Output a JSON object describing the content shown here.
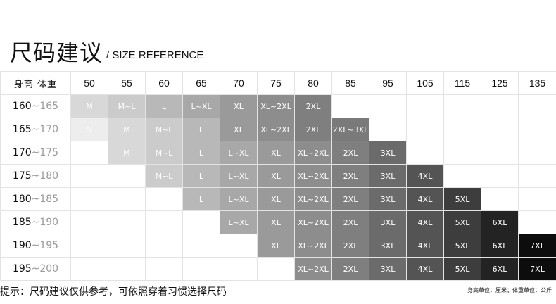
{
  "header": {
    "title_cn": "尺码建议",
    "title_en": "/ SIZE REFERENCE"
  },
  "table": {
    "corner_label": "身高  体重",
    "weights": [
      "50",
      "55",
      "60",
      "65",
      "70",
      "75",
      "80",
      "85",
      "95",
      "105",
      "115",
      "125",
      "135"
    ],
    "rows": [
      {
        "height_from": "160",
        "height_to": "~165",
        "cells": [
          "M",
          "M~L",
          "L",
          "L~XL",
          "XL",
          "XL~2XL",
          "2XL",
          "",
          "",
          "",
          "",
          "",
          ""
        ]
      },
      {
        "height_from": "165",
        "height_to": "~170",
        "cells": [
          "S",
          "M",
          "M~L",
          "L",
          "XL",
          "XL~2XL",
          "2XL",
          "2XL~3XL",
          "",
          "",
          "",
          "",
          ""
        ]
      },
      {
        "height_from": "170",
        "height_to": "~175",
        "cells": [
          "",
          "M",
          "M~L",
          "L",
          "L~XL",
          "XL",
          "XL~2XL",
          "2XL",
          "3XL",
          "",
          "",
          "",
          ""
        ]
      },
      {
        "height_from": "175",
        "height_to": "~180",
        "cells": [
          "",
          "",
          "M~L",
          "L",
          "L~XL",
          "XL",
          "XL~2XL",
          "2XL",
          "3XL",
          "4XL",
          "",
          "",
          ""
        ]
      },
      {
        "height_from": "180",
        "height_to": "~185",
        "cells": [
          "",
          "",
          "",
          "L",
          "L~XL",
          "XL",
          "XL~2XL",
          "2XL",
          "3XL",
          "4XL",
          "5XL",
          "",
          ""
        ]
      },
      {
        "height_from": "185",
        "height_to": "~190",
        "cells": [
          "",
          "",
          "",
          "",
          "L~XL",
          "XL",
          "XL~2XL",
          "2XL",
          "3XL",
          "4XL",
          "5XL",
          "6XL",
          ""
        ]
      },
      {
        "height_from": "190",
        "height_to": "~195",
        "cells": [
          "",
          "",
          "",
          "",
          "",
          "XL",
          "XL~2XL",
          "2XL",
          "3XL",
          "4XL",
          "5XL",
          "6XL",
          "7XL"
        ]
      },
      {
        "height_from": "195",
        "height_to": "~200",
        "cells": [
          "",
          "",
          "",
          "",
          "",
          "",
          "XL~2XL",
          "2XL",
          "3XL",
          "4XL",
          "5XL",
          "6XL",
          "7XL"
        ]
      }
    ],
    "size_colors": {
      "S": {
        "bg": "#ededed",
        "fg": "#ffffff"
      },
      "M": {
        "bg": "#d8d8d8",
        "fg": "#ffffff"
      },
      "M~L": {
        "bg": "#cbcbcb",
        "fg": "#ffffff"
      },
      "L": {
        "bg": "#b8b8b8",
        "fg": "#ffffff"
      },
      "L~XL": {
        "bg": "#a8a8a8",
        "fg": "#ffffff"
      },
      "XL": {
        "bg": "#9a9a9a",
        "fg": "#ffffff"
      },
      "XL~2XL": {
        "bg": "#8d8d8d",
        "fg": "#ffffff"
      },
      "2XL": {
        "bg": "#7f7f7f",
        "fg": "#ffffff"
      },
      "2XL~3XL": {
        "bg": "#7a7a7a",
        "fg": "#ffffff"
      },
      "3XL": {
        "bg": "#6b6b6b",
        "fg": "#ffffff"
      },
      "4XL": {
        "bg": "#545454",
        "fg": "#ffffff"
      },
      "5XL": {
        "bg": "#3d3d3d",
        "fg": "#ffffff"
      },
      "6XL": {
        "bg": "#232323",
        "fg": "#ffffff"
      },
      "7XL": {
        "bg": "#0d0d0d",
        "fg": "#ffffff"
      }
    }
  },
  "footer": {
    "tip": "提示：尺码建议仅供参考，可依照穿着习惯选择尺码",
    "units": "身高单位：厘米；体重单位：公斤"
  }
}
